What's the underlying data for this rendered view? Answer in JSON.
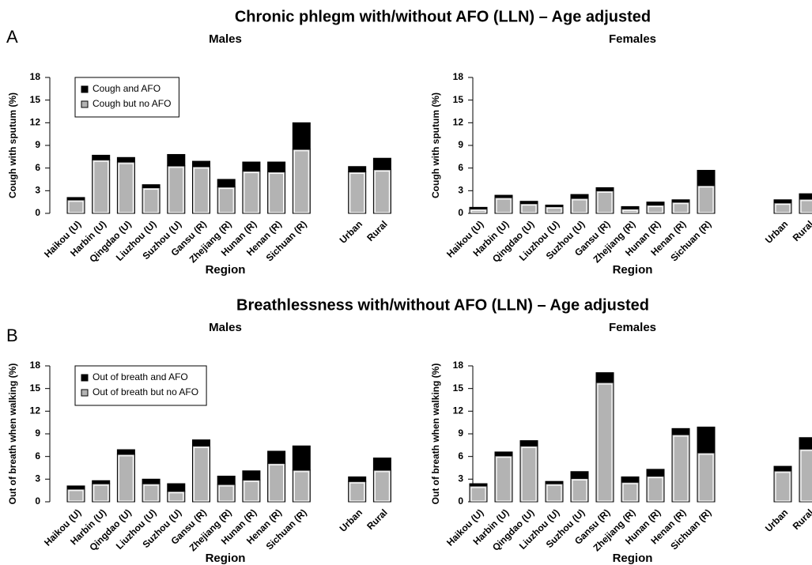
{
  "sections": [
    {
      "label": "A",
      "title": "Chronic phlegm with/without AFO (LLN) – Age adjusted"
    },
    {
      "label": "B",
      "title": "Breathlessness with/without AFO (LLN) – Age adjusted"
    }
  ],
  "chart_data": [
    {
      "type": "bar",
      "stacked": true,
      "title": "Males",
      "xlabel": "Region",
      "ylabel": "Cough with sputum (%)",
      "categories": [
        "Haikou (U)",
        "Harbin (U)",
        "Qingdao (U)",
        "Liuzhou (U)",
        "Suzhou (U)",
        "Gansu (R)",
        "Zhejiang (R)",
        "Hunan (R)",
        "Henan (R)",
        "Sichuan (R)",
        null,
        "Urban",
        "Rural"
      ],
      "series": [
        {
          "name": "Cough but no AFO",
          "color": "#b3b3b3",
          "values": [
            1.8,
            7.1,
            6.8,
            3.4,
            6.3,
            6.2,
            3.5,
            5.6,
            5.5,
            8.5,
            null,
            5.5,
            5.8
          ]
        },
        {
          "name": "Cough and AFO",
          "color": "#000000",
          "values": [
            0.3,
            0.6,
            0.6,
            0.4,
            1.5,
            0.7,
            1.0,
            1.2,
            1.3,
            3.5,
            null,
            0.7,
            1.5
          ]
        }
      ],
      "ylim": [
        0,
        18
      ],
      "yticks": [
        0,
        3,
        6,
        9,
        12,
        15,
        18
      ],
      "legend": "upper left"
    },
    {
      "type": "bar",
      "stacked": true,
      "title": "Females",
      "xlabel": "Region",
      "ylabel": "Cough with sputum (%)",
      "categories": [
        "Haikou (U)",
        "Harbin (U)",
        "Qingdao (U)",
        "Liuzhou (U)",
        "Suzhou (U)",
        "Gansu (R)",
        "Zhejiang (R)",
        "Hunan (R)",
        "Henan (R)",
        "Sichuan (R)",
        null,
        "Urban",
        "Rural"
      ],
      "series": [
        {
          "color": "#b3b3b3",
          "values": [
            0.6,
            2.1,
            1.3,
            0.9,
            2.0,
            3.0,
            0.6,
            1.1,
            1.5,
            3.7,
            null,
            1.4,
            1.9
          ]
        },
        {
          "color": "#000000",
          "values": [
            0.2,
            0.3,
            0.3,
            0.2,
            0.5,
            0.4,
            0.3,
            0.4,
            0.3,
            2.0,
            null,
            0.4,
            0.7
          ]
        }
      ],
      "ylim": [
        0,
        18
      ],
      "yticks": [
        0,
        3,
        6,
        9,
        12,
        15,
        18
      ]
    },
    {
      "type": "bar",
      "stacked": true,
      "title": "Males",
      "xlabel": "Region",
      "ylabel": "Out of breath when walking (%)",
      "categories": [
        "Haikou (U)",
        "Harbin (U)",
        "Qingdao (U)",
        "Liuzhou (U)",
        "Suzhou (U)",
        "Gansu (R)",
        "Zhejiang (R)",
        "Hunan (R)",
        "Henan (R)",
        "Sichuan (R)",
        null,
        "Urban",
        "Rural"
      ],
      "series": [
        {
          "name": "Out of breath but no AFO",
          "color": "#b3b3b3",
          "values": [
            1.7,
            2.4,
            6.3,
            2.4,
            1.4,
            7.4,
            2.3,
            2.9,
            5.1,
            4.2,
            null,
            2.7,
            4.2
          ]
        },
        {
          "name": "Out of breath and AFO",
          "color": "#000000",
          "values": [
            0.4,
            0.4,
            0.6,
            0.6,
            1.0,
            0.8,
            1.1,
            1.2,
            1.6,
            3.2,
            null,
            0.6,
            1.6
          ]
        }
      ],
      "ylim": [
        0,
        18
      ],
      "yticks": [
        0,
        3,
        6,
        9,
        12,
        15,
        18
      ],
      "legend": "upper left"
    },
    {
      "type": "bar",
      "stacked": true,
      "title": "Females",
      "xlabel": "Region",
      "ylabel": "Out of breath when walking (%)",
      "categories": [
        "Haikou (U)",
        "Harbin (U)",
        "Qingdao (U)",
        "Liuzhou (U)",
        "Suzhou (U)",
        "Gansu (R)",
        "Zhejiang (R)",
        "Hunan (R)",
        "Henan (R)",
        "Sichuan (R)",
        null,
        "Urban",
        "Rural"
      ],
      "series": [
        {
          "color": "#b3b3b3",
          "values": [
            2.1,
            6.1,
            7.4,
            2.4,
            3.1,
            15.8,
            2.6,
            3.4,
            8.9,
            6.5,
            null,
            4.1,
            7.0
          ]
        },
        {
          "color": "#000000",
          "values": [
            0.3,
            0.5,
            0.7,
            0.3,
            0.9,
            1.3,
            0.7,
            0.9,
            0.8,
            3.4,
            null,
            0.6,
            1.5
          ]
        }
      ],
      "ylim": [
        0,
        18
      ],
      "yticks": [
        0,
        3,
        6,
        9,
        12,
        15,
        18
      ]
    }
  ]
}
